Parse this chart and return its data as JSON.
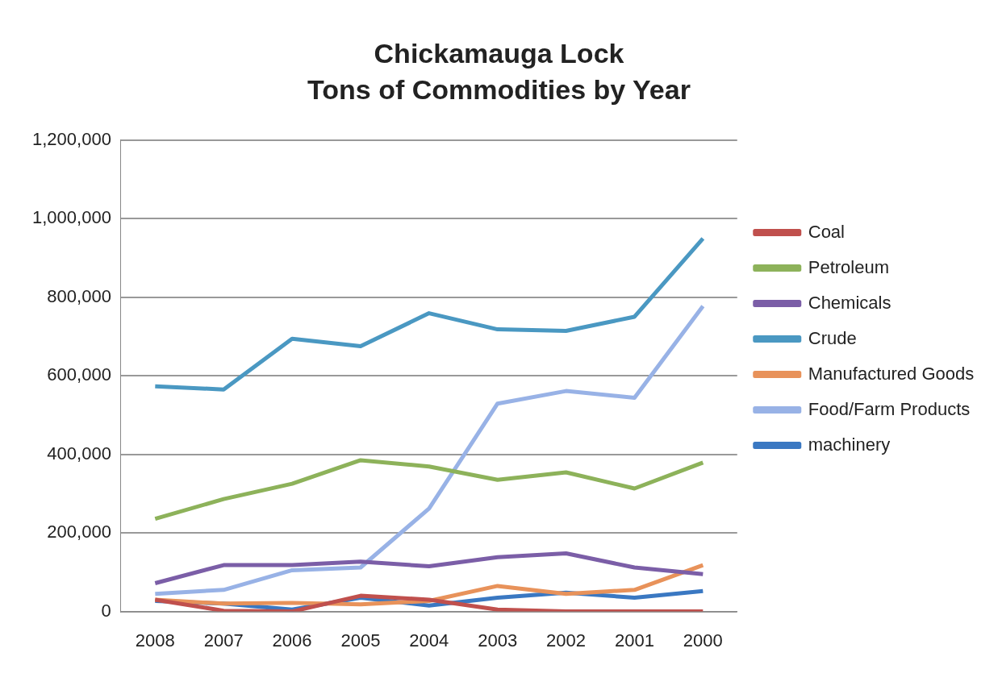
{
  "chart_data": {
    "type": "line",
    "title": "Chickamauga Lock",
    "subtitle": "Tons of Commodities by Year",
    "categories": [
      "2008",
      "2007",
      "2006",
      "2005",
      "2004",
      "2003",
      "2002",
      "2001",
      "2000"
    ],
    "ylim": [
      0,
      1200000
    ],
    "yticks": [
      {
        "value": 0,
        "label": "0"
      },
      {
        "value": 200000,
        "label": "200,000"
      },
      {
        "value": 400000,
        "label": "400,000"
      },
      {
        "value": 600000,
        "label": "600,000"
      },
      {
        "value": 800000,
        "label": "800,000"
      },
      {
        "value": 1000000,
        "label": "1,000,000"
      },
      {
        "value": 1200000,
        "label": "1,200,000"
      }
    ],
    "grid": "y",
    "legend": "right",
    "marker": "none",
    "line_style": "solid",
    "series": [
      {
        "name": "Coal",
        "color": "#c0504d",
        "values": [
          30000,
          2000,
          0,
          40000,
          30000,
          5000,
          0,
          0,
          0
        ]
      },
      {
        "name": "Petroleum",
        "color": "#8db25a",
        "values": [
          236000,
          286000,
          325000,
          385000,
          369000,
          335000,
          354000,
          313000,
          379000
        ]
      },
      {
        "name": "Chemicals",
        "color": "#7b5ea7",
        "values": [
          72000,
          118000,
          118000,
          127000,
          115000,
          138000,
          148000,
          112000,
          95000
        ]
      },
      {
        "name": "Crude",
        "color": "#4a98c2",
        "values": [
          573000,
          565000,
          694000,
          675000,
          759000,
          718000,
          714000,
          750000,
          949000
        ]
      },
      {
        "name": "Manufactured Goods",
        "color": "#e8925a",
        "values": [
          30000,
          20000,
          22000,
          18000,
          27000,
          65000,
          45000,
          55000,
          118000
        ]
      },
      {
        "name": "Food/Farm Products",
        "color": "#98b2e6",
        "values": [
          45000,
          55000,
          105000,
          112000,
          262000,
          529000,
          561000,
          544000,
          777000
        ]
      },
      {
        "name": "machinery",
        "color": "#3a78c2",
        "values": [
          27000,
          20000,
          5000,
          35000,
          15000,
          35000,
          48000,
          35000,
          52000
        ]
      }
    ]
  }
}
